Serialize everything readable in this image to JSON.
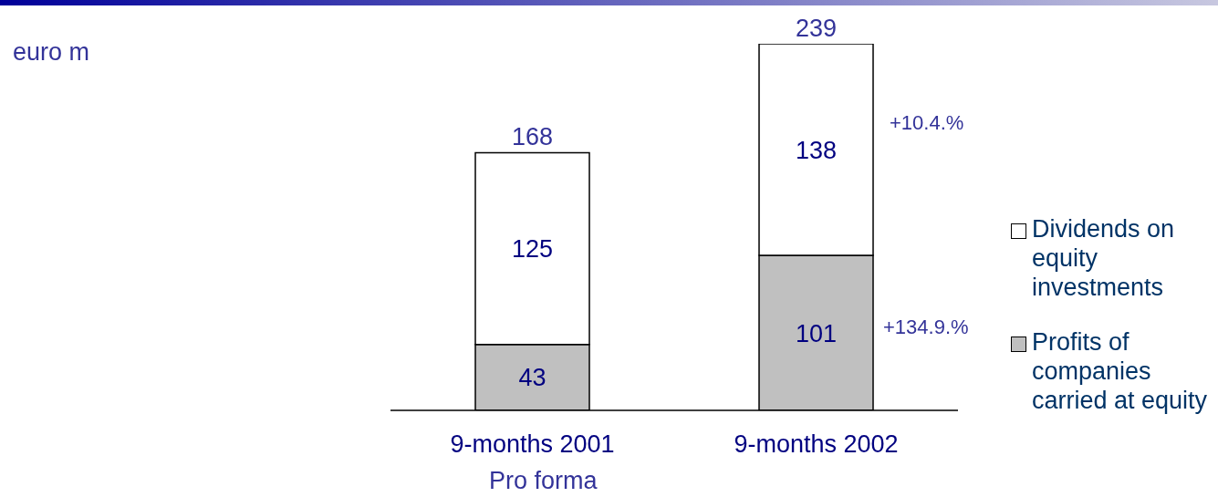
{
  "chart_data": {
    "type": "bar",
    "categories": [
      "9-months 2001",
      "9-months 2002"
    ],
    "series": [
      {
        "name": "Profits of companies carried at equity",
        "color": "#c0c0c0",
        "values": [
          43,
          101
        ]
      },
      {
        "name": "Dividends on equity investments",
        "color": "#ffffff",
        "values": [
          125,
          138
        ]
      }
    ],
    "stacked": true,
    "data_labels": true,
    "totals": [
      "168",
      "239"
    ],
    "legend": "right",
    "annotations": [
      "euro m",
      "Pro forma",
      "+10.4.%",
      "+134.9.%"
    ]
  }
}
